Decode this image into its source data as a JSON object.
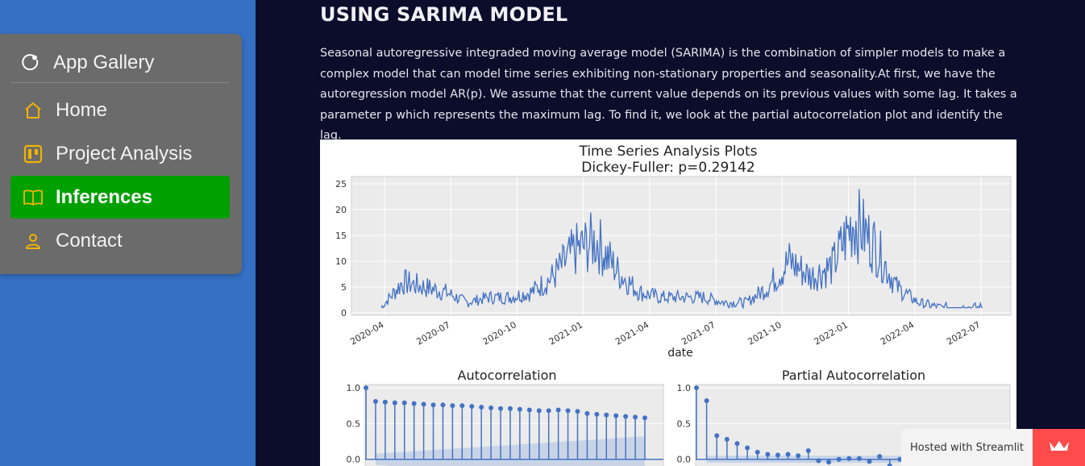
{
  "sidebar": {
    "gallery_label": "App Gallery",
    "items": [
      {
        "label": "Home",
        "icon": "house-icon"
      },
      {
        "label": "Project Analysis",
        "icon": "kanban-icon"
      },
      {
        "label": "Inferences",
        "icon": "book-icon",
        "active": true
      },
      {
        "label": "Contact",
        "icon": "person-icon"
      }
    ],
    "active_color": "#00a000",
    "icon_color": "#f0b400"
  },
  "main": {
    "title": "USING SARIMA MODEL",
    "intro": "Seasonal autoregressive integraded moving average model (SARIMA) is the combination of simpler models to make a complex model that can model time series exhibiting non-stationary properties and seasonality.At first, we have the autoregression model AR(p). We assume that the current value depends on its previous values with some lag. It takes a parameter p which represents the maximum lag. To find it, we look at the partial autocorrelation plot and identify the lag."
  },
  "chart_data": [
    {
      "type": "line",
      "title": "Time Series Analysis Plots",
      "subtitle": "Dickey-Fuller: p=0.29142",
      "xlabel": "date",
      "ylabel": "",
      "x_ticks": [
        "2020-04",
        "2020-07",
        "2020-10",
        "2021-01",
        "2021-04",
        "2021-07",
        "2021-10",
        "2022-01",
        "2022-04",
        "2022-07"
      ],
      "y_ticks": [
        0,
        5,
        10,
        15,
        20,
        25
      ],
      "ylim": [
        0,
        25
      ],
      "grid": true,
      "series_color": "#4472c4",
      "x": [
        "2020-03",
        "2020-04",
        "2020-05",
        "2020-06",
        "2020-07",
        "2020-08",
        "2020-09",
        "2020-10",
        "2020-11",
        "2020-12",
        "2021-01",
        "2021-02",
        "2021-03",
        "2021-04",
        "2021-05",
        "2021-06",
        "2021-07",
        "2021-08",
        "2021-09",
        "2021-10",
        "2021-11",
        "2021-12",
        "2022-01",
        "2022-02",
        "2022-03",
        "2022-04",
        "2022-05",
        "2022-06",
        "2022-07"
      ],
      "values": [
        1,
        6,
        5,
        4,
        2,
        3,
        3,
        4,
        7,
        12,
        14,
        8,
        4,
        3,
        3,
        3,
        2,
        2,
        5,
        10,
        7,
        9,
        18,
        13,
        5,
        2,
        1,
        1,
        1
      ]
    },
    {
      "type": "bar",
      "title": "Autocorrelation",
      "y_ticks": [
        0.0,
        0.5,
        1.0
      ],
      "ylim": [
        -0.15,
        1.0
      ],
      "lags": [
        0,
        1,
        2,
        3,
        4,
        5,
        6,
        7,
        8,
        9,
        10,
        11,
        12,
        13,
        14,
        15,
        16,
        17,
        18,
        19,
        20,
        21,
        22,
        23,
        24,
        25,
        26,
        27,
        28,
        29
      ],
      "values": [
        1.0,
        0.81,
        0.8,
        0.79,
        0.79,
        0.78,
        0.77,
        0.76,
        0.76,
        0.75,
        0.75,
        0.74,
        0.73,
        0.72,
        0.71,
        0.71,
        0.7,
        0.69,
        0.68,
        0.68,
        0.69,
        0.68,
        0.67,
        0.64,
        0.63,
        0.62,
        0.61,
        0.6,
        0.59,
        0.58
      ],
      "confidence_band": [
        0.07,
        0.32
      ]
    },
    {
      "type": "bar",
      "title": "Partial Autocorrelation",
      "y_ticks": [
        0.0,
        0.5,
        1.0
      ],
      "ylim": [
        -0.15,
        1.0
      ],
      "lags": [
        0,
        1,
        2,
        3,
        4,
        5,
        6,
        7,
        8,
        9,
        10,
        11,
        12,
        13,
        14,
        15,
        16,
        17,
        18,
        19,
        20,
        21,
        22,
        23,
        24,
        25,
        26,
        27,
        28,
        29
      ],
      "values": [
        1.0,
        0.82,
        0.33,
        0.28,
        0.22,
        0.16,
        0.1,
        0.07,
        0.06,
        0.07,
        0.05,
        0.12,
        -0.02,
        -0.04,
        0.0,
        0.01,
        0.01,
        -0.03,
        0.04,
        -0.09,
        0.0,
        0.07,
        -0.01,
        -0.03,
        -0.02,
        -0.03,
        -0.02,
        -0.03,
        -0.02,
        -0.02
      ],
      "confidence_band": [
        0.05,
        0.05
      ]
    }
  ],
  "footer": {
    "hosted_label": "Hosted with Streamlit",
    "badge_icon": "streamlit-crown-icon"
  }
}
